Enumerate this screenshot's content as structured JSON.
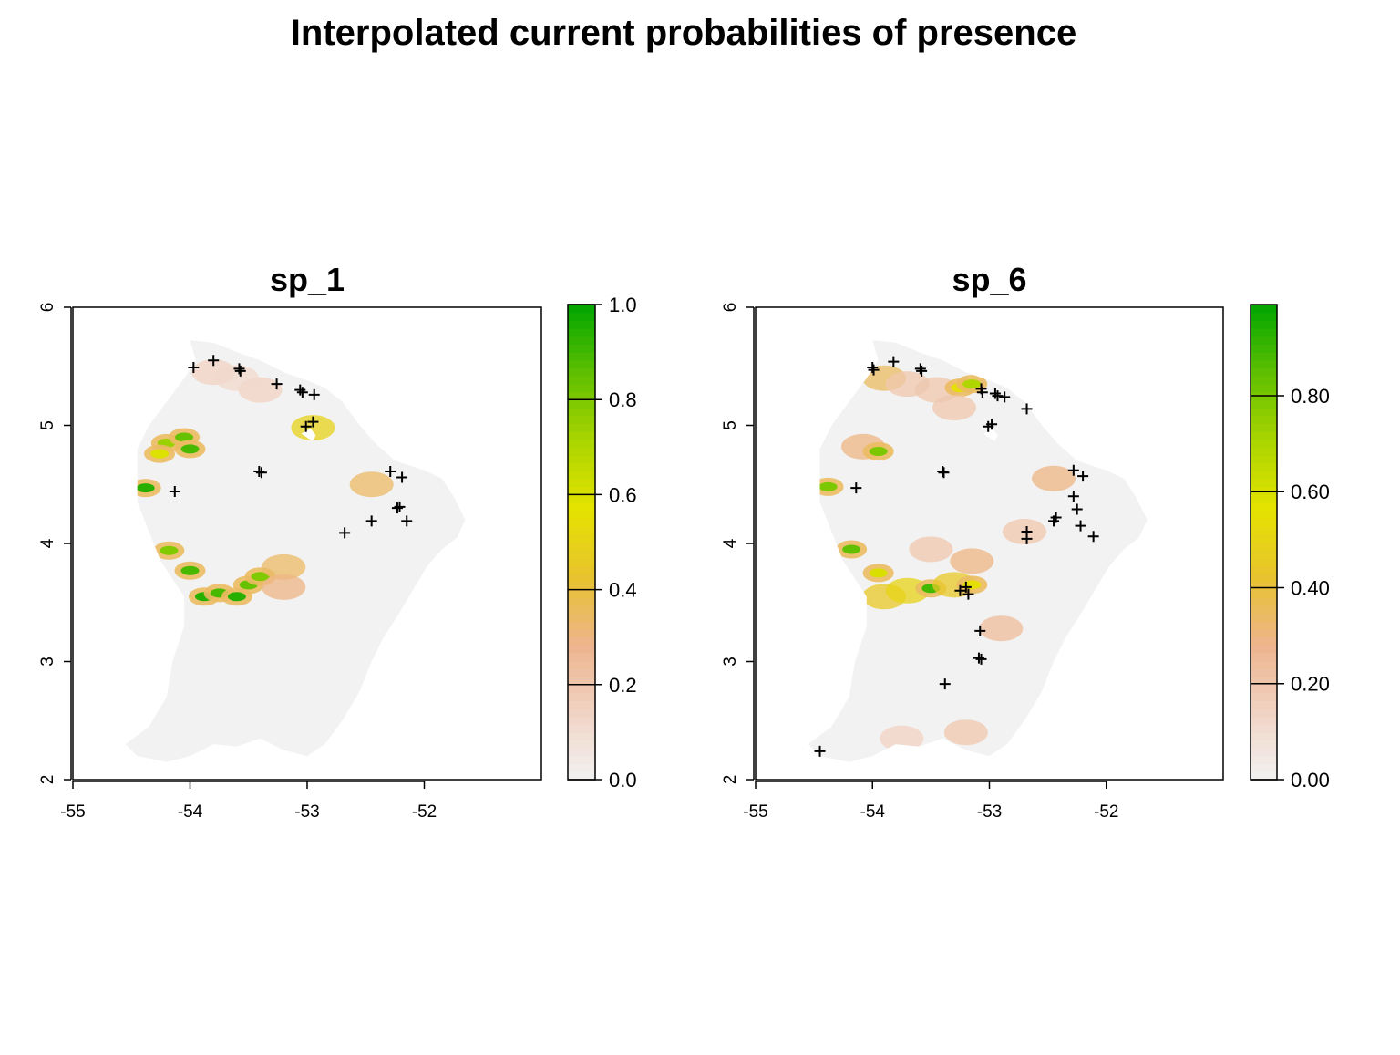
{
  "title": "Interpolated current probabilities of presence",
  "colors": {
    "ramp": [
      "#f2f2f2",
      "#f1d3c4",
      "#edb48c",
      "#e8c32e",
      "#e5e300",
      "#aad500",
      "#5ebf00",
      "#00a600"
    ],
    "land": "#f2f2f2",
    "axis": "#000000"
  },
  "chart_data": [
    {
      "type": "heatmap",
      "title": "sp_1",
      "xlim": [
        -55,
        -51
      ],
      "ylim": [
        2,
        6
      ],
      "x_ticks": [
        "-55",
        "-54",
        "-53",
        "-52"
      ],
      "y_ticks": [
        "2",
        "3",
        "4",
        "5",
        "6"
      ],
      "legend": {
        "position": "right",
        "range": [
          0,
          1
        ],
        "ticks": [
          0.0,
          0.2,
          0.4,
          0.6,
          0.8,
          1.0
        ],
        "tick_labels": [
          "0.0",
          "0.2",
          "0.4",
          "0.6",
          "0.8",
          "1.0"
        ]
      },
      "occurrences": [
        [
          -53.97,
          5.49
        ],
        [
          -53.8,
          5.55
        ],
        [
          -53.58,
          5.48
        ],
        [
          -53.57,
          5.46
        ],
        [
          -53.26,
          5.35
        ],
        [
          -53.06,
          5.3
        ],
        [
          -53.04,
          5.28
        ],
        [
          -52.94,
          5.26
        ],
        [
          -52.95,
          5.03
        ],
        [
          -53.01,
          4.99
        ],
        [
          -53.41,
          4.61
        ],
        [
          -53.39,
          4.6
        ],
        [
          -54.13,
          4.44
        ],
        [
          -52.29,
          4.61
        ],
        [
          -52.19,
          4.56
        ],
        [
          -52.23,
          4.3
        ],
        [
          -52.21,
          4.31
        ],
        [
          -52.45,
          4.19
        ],
        [
          -52.15,
          4.19
        ],
        [
          -52.68,
          4.09
        ]
      ],
      "suitable_patches": [
        [
          -54.2,
          4.85,
          0.75
        ],
        [
          -54.05,
          4.9,
          0.85
        ],
        [
          -54.0,
          4.8,
          0.9
        ],
        [
          -54.26,
          4.76,
          0.6
        ],
        [
          -54.38,
          4.47,
          0.95
        ],
        [
          -54.18,
          3.94,
          0.8
        ],
        [
          -54.0,
          3.77,
          0.9
        ],
        [
          -53.88,
          3.55,
          0.95
        ],
        [
          -53.75,
          3.58,
          0.9
        ],
        [
          -53.6,
          3.55,
          0.95
        ],
        [
          -53.5,
          3.65,
          0.85
        ],
        [
          -53.4,
          3.72,
          0.8
        ],
        [
          -53.2,
          3.8,
          0.35
        ],
        [
          -53.2,
          3.63,
          0.3
        ],
        [
          -52.95,
          4.98,
          0.5
        ],
        [
          -52.45,
          4.5,
          0.35
        ],
        [
          -53.8,
          5.45,
          0.15
        ],
        [
          -53.4,
          5.3,
          0.15
        ],
        [
          -53.6,
          5.4,
          0.12
        ]
      ]
    },
    {
      "type": "heatmap",
      "title": "sp_6",
      "xlim": [
        -55,
        -51
      ],
      "ylim": [
        2,
        6
      ],
      "x_ticks": [
        "-55",
        "-54",
        "-53",
        "-52"
      ],
      "y_ticks": [
        "2",
        "3",
        "4",
        "5",
        "6"
      ],
      "legend": {
        "position": "right",
        "range": [
          0,
          0.99
        ],
        "ticks": [
          0.0,
          0.2,
          0.4,
          0.6,
          0.8
        ],
        "tick_labels": [
          "0.00",
          "0.20",
          "0.40",
          "0.60",
          "0.80"
        ]
      },
      "occurrences": [
        [
          -54.0,
          5.49
        ],
        [
          -53.99,
          5.47
        ],
        [
          -53.82,
          5.54
        ],
        [
          -53.59,
          5.48
        ],
        [
          -53.58,
          5.46
        ],
        [
          -53.07,
          5.31
        ],
        [
          -53.06,
          5.28
        ],
        [
          -52.95,
          5.27
        ],
        [
          -52.93,
          5.25
        ],
        [
          -52.87,
          5.24
        ],
        [
          -52.68,
          5.14
        ],
        [
          -53.01,
          4.99
        ],
        [
          -52.98,
          5.01
        ],
        [
          -53.4,
          4.61
        ],
        [
          -53.39,
          4.6
        ],
        [
          -54.14,
          4.47
        ],
        [
          -52.28,
          4.62
        ],
        [
          -52.2,
          4.57
        ],
        [
          -52.28,
          4.4
        ],
        [
          -52.25,
          4.29
        ],
        [
          -52.43,
          4.22
        ],
        [
          -52.45,
          4.19
        ],
        [
          -52.22,
          4.15
        ],
        [
          -52.11,
          4.06
        ],
        [
          -52.68,
          4.1
        ],
        [
          -52.68,
          4.04
        ],
        [
          -53.25,
          3.6
        ],
        [
          -53.2,
          3.63
        ],
        [
          -53.18,
          3.57
        ],
        [
          -53.08,
          3.26
        ],
        [
          -53.09,
          3.03
        ],
        [
          -53.07,
          3.02
        ],
        [
          -53.38,
          2.81
        ],
        [
          -54.45,
          2.24
        ]
      ],
      "suitable_patches": [
        [
          -53.9,
          5.4,
          0.35
        ],
        [
          -53.7,
          5.35,
          0.2
        ],
        [
          -53.45,
          5.3,
          0.2
        ],
        [
          -53.25,
          5.32,
          0.55
        ],
        [
          -53.15,
          5.35,
          0.7
        ],
        [
          -53.3,
          5.15,
          0.2
        ],
        [
          -54.08,
          4.82,
          0.3
        ],
        [
          -53.95,
          4.78,
          0.8
        ],
        [
          -54.18,
          3.95,
          0.85
        ],
        [
          -53.9,
          3.55,
          0.45
        ],
        [
          -53.7,
          3.6,
          0.5
        ],
        [
          -53.5,
          3.62,
          0.9
        ],
        [
          -53.3,
          3.65,
          0.45
        ],
        [
          -53.15,
          3.65,
          0.55
        ],
        [
          -53.15,
          3.85,
          0.3
        ],
        [
          -53.95,
          3.75,
          0.6
        ],
        [
          -54.38,
          4.48,
          0.8
        ],
        [
          -52.45,
          4.55,
          0.3
        ],
        [
          -52.7,
          4.1,
          0.2
        ],
        [
          -53.2,
          2.4,
          0.2
        ],
        [
          -53.75,
          2.35,
          0.15
        ],
        [
          -53.5,
          3.95,
          0.2
        ],
        [
          -52.9,
          3.28,
          0.25
        ]
      ]
    }
  ]
}
